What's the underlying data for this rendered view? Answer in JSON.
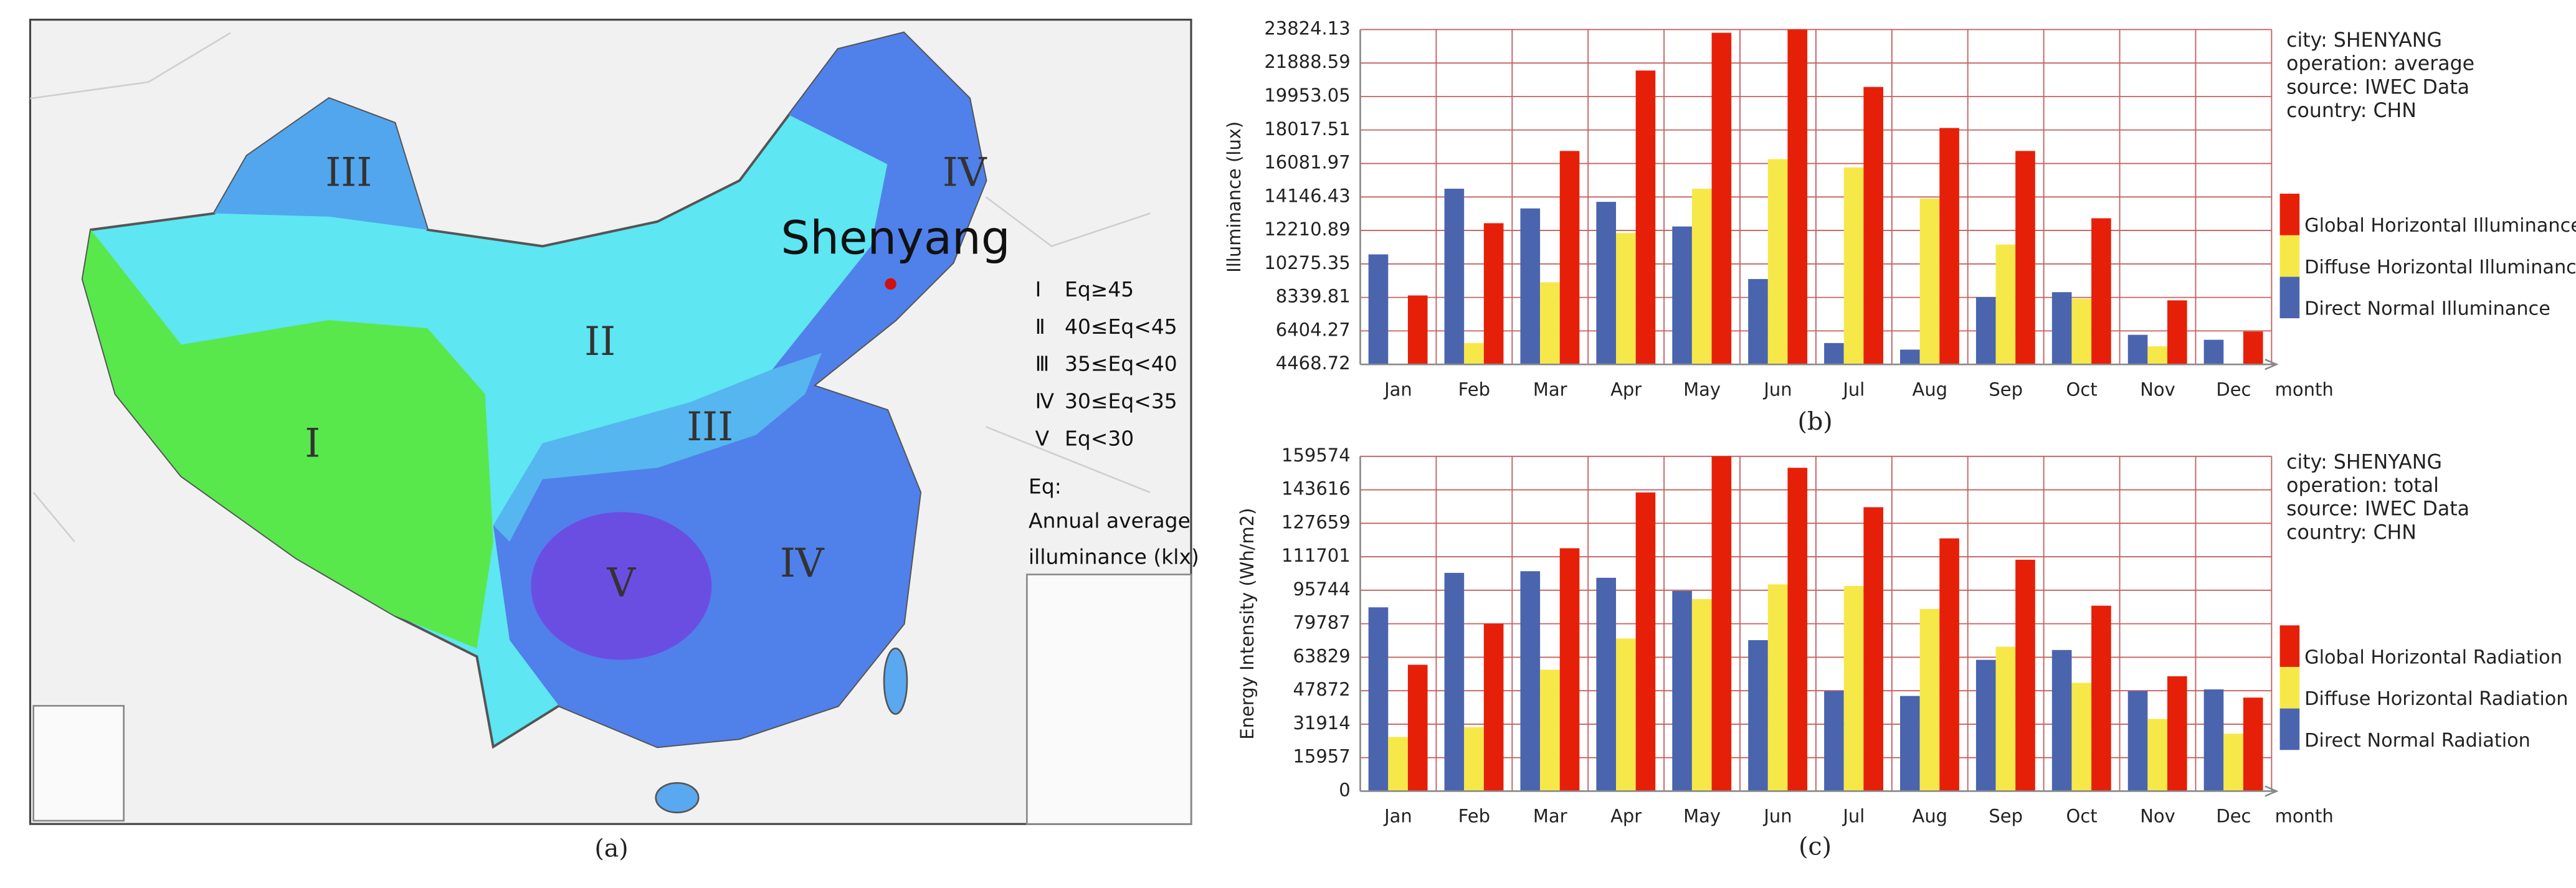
{
  "map": {
    "caption": "(a)",
    "city": "Shenyang",
    "zones": [
      "III",
      "IV",
      "II",
      "III",
      "I",
      "V",
      "IV"
    ],
    "legend": [
      {
        "symbol": "Ⅰ",
        "text": "Eq≥45"
      },
      {
        "symbol": "Ⅱ",
        "text": "40≤Eq<45"
      },
      {
        "symbol": "Ⅲ",
        "text": "35≤Eq<40"
      },
      {
        "symbol": "Ⅳ",
        "text": "30≤Eq<35"
      },
      {
        "symbol": "Ⅴ",
        "text": "Eq<30"
      }
    ],
    "note": [
      "Eq:",
      "Annual average",
      "illuminance (klx)"
    ]
  },
  "chart_data": [
    {
      "type": "bar",
      "caption": "(b)",
      "y_label": "Illuminance (lux)",
      "x_label": "month",
      "info": [
        "city: SHENYANG",
        "operation: average",
        "source: IWEC Data",
        "country: CHN"
      ],
      "categories": [
        "Jan",
        "Feb",
        "Mar",
        "Apr",
        "May",
        "Jun",
        "Jul",
        "Aug",
        "Sep",
        "Oct",
        "Nov",
        "Dec"
      ],
      "series": [
        {
          "name": "Direct Normal Illuminance",
          "color": "#4a64ae",
          "values": [
            10827,
            14623,
            13484,
            13864,
            12440,
            9403,
            5702,
            5323,
            8359,
            8644,
            6177,
            5892
          ]
        },
        {
          "name": "Diffuse Horizontal Illuminance",
          "color": "#f7e84a",
          "values": [
            null,
            5702,
            9213,
            12060,
            14623,
            16331,
            15856,
            14054,
            11396,
            8265,
            5513,
            null
          ]
        },
        {
          "name": "Global Horizontal Illuminance",
          "color": "#e62008",
          "values": [
            8454,
            12630,
            16806,
            21456,
            23638,
            23824,
            20507,
            18134,
            16806,
            12915,
            8170,
            6367
          ]
        }
      ],
      "ylim": [
        4468.72,
        23824.13
      ],
      "yticks": [
        4468.72,
        6404.27,
        8339.81,
        10275.35,
        12210.89,
        14146.43,
        16081.97,
        18017.51,
        19953.05,
        21888.59,
        23824.13
      ],
      "grid": true
    },
    {
      "type": "bar",
      "caption": "(c)",
      "y_label": "Energy Intensity (Wh/m2)",
      "x_label": "month",
      "info": [
        "city: SHENYANG",
        "operation: total",
        "source: IWEC Data",
        "country: CHN"
      ],
      "categories": [
        "Jan",
        "Feb",
        "Mar",
        "Apr",
        "May",
        "Jun",
        "Jul",
        "Aug",
        "Sep",
        "Oct",
        "Nov",
        "Dec"
      ],
      "series": [
        {
          "name": "Direct Normal Radiation",
          "color": "#4a64ae",
          "values": [
            87606,
            104033,
            104815,
            101686,
            95428,
            71963,
            47714,
            45367,
            62576,
            67269,
            47714,
            48496
          ]
        },
        {
          "name": "Diffuse Horizontal Radiation",
          "color": "#f7e84a",
          "values": [
            25813,
            30506,
            57883,
            72745,
            91517,
            98557,
            97775,
            86824,
            68834,
            51625,
            34417,
            27377
          ]
        },
        {
          "name": "Global Horizontal Radiation",
          "color": "#e62008",
          "values": [
            60230,
            79787,
            115766,
            142360,
            159574,
            154096,
            135320,
            120458,
            110290,
            88388,
            54754,
            44585
          ]
        }
      ],
      "ylim": [
        0,
        159574
      ],
      "yticks": [
        0,
        15957,
        31914,
        47872,
        63829,
        79787,
        95744,
        111701,
        127659,
        143616,
        159574
      ],
      "grid": true
    }
  ]
}
